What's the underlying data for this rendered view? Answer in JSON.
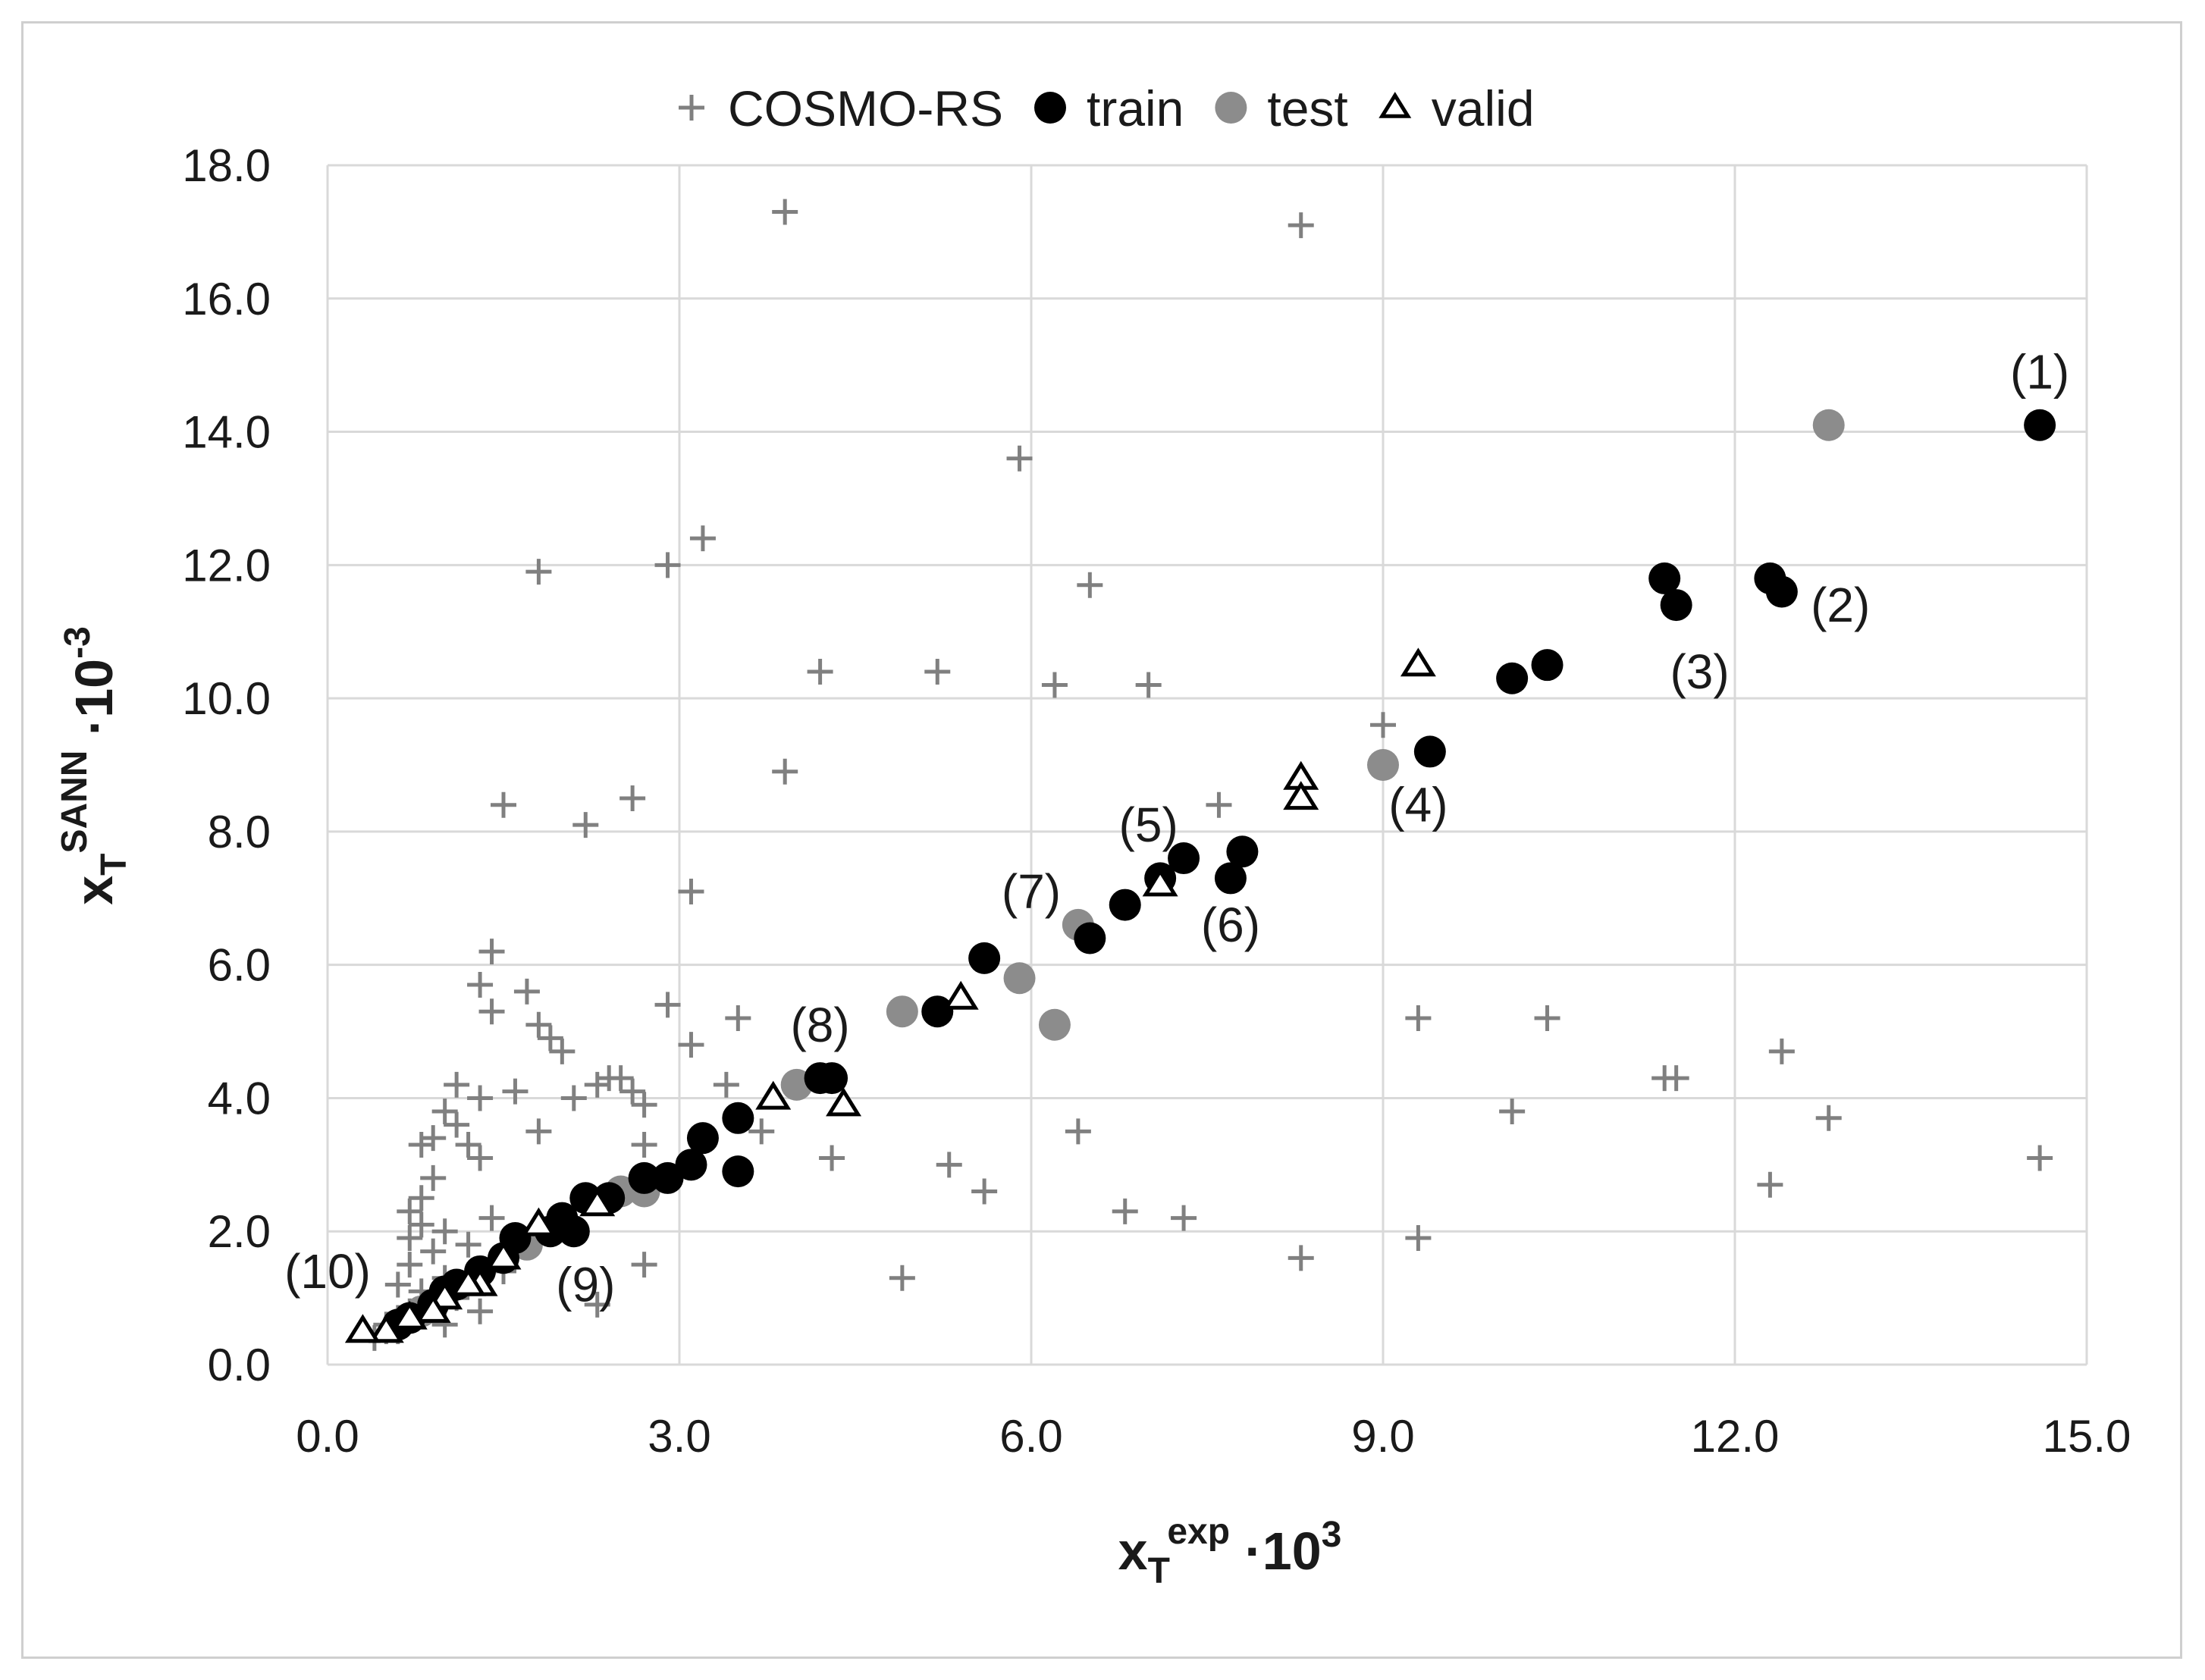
{
  "chart_data": {
    "type": "scatter",
    "title": "",
    "xlabel": {
      "base": "x",
      "sub": "T",
      "sup": "exp",
      "suffix": " ·10",
      "suffix_sup": "3"
    },
    "ylabel": {
      "base": "x",
      "sub": "T",
      "sup": "SANN",
      "suffix": " ·10",
      "suffix_sup": "-3"
    },
    "xlim": [
      0,
      15
    ],
    "ylim": [
      0,
      18
    ],
    "xticks": [
      0,
      3,
      6,
      9,
      12,
      15
    ],
    "yticks": [
      0,
      2,
      4,
      6,
      8,
      10,
      12,
      14,
      16,
      18
    ],
    "xtick_labels": [
      "0.0",
      "3.0",
      "6.0",
      "9.0",
      "12.0",
      "15.0"
    ],
    "ytick_labels": [
      "0.0",
      "2.0",
      "4.0",
      "6.0",
      "8.0",
      "10.0",
      "12.0",
      "14.0",
      "16.0",
      "18.0"
    ],
    "grid": true,
    "legend_position": "top-center",
    "legend": [
      {
        "name": "COSMO-RS",
        "marker": "plus",
        "color": "#808080"
      },
      {
        "name": "train",
        "marker": "circle",
        "color": "#000000"
      },
      {
        "name": "test",
        "marker": "circle",
        "color": "#8c8c8c"
      },
      {
        "name": "valid",
        "marker": "triangle",
        "color": "#000000"
      }
    ],
    "series": [
      {
        "name": "COSMO-RS",
        "points": [
          [
            3.9,
            17.3
          ],
          [
            8.3,
            17.1
          ],
          [
            5.9,
            13.6
          ],
          [
            3.2,
            12.4
          ],
          [
            2.9,
            12.0
          ],
          [
            1.8,
            11.9
          ],
          [
            6.5,
            11.7
          ],
          [
            4.2,
            10.4
          ],
          [
            5.2,
            10.4
          ],
          [
            6.2,
            10.2
          ],
          [
            7.0,
            10.2
          ],
          [
            9.0,
            9.6
          ],
          [
            3.9,
            8.9
          ],
          [
            7.6,
            8.4
          ],
          [
            2.6,
            8.5
          ],
          [
            1.5,
            8.4
          ],
          [
            2.2,
            8.1
          ],
          [
            3.1,
            7.1
          ],
          [
            1.4,
            6.2
          ],
          [
            1.3,
            5.7
          ],
          [
            1.7,
            5.6
          ],
          [
            1.4,
            5.3
          ],
          [
            2.9,
            5.4
          ],
          [
            3.5,
            5.2
          ],
          [
            1.8,
            5.1
          ],
          [
            1.9,
            4.9
          ],
          [
            2.0,
            4.7
          ],
          [
            3.1,
            4.8
          ],
          [
            9.3,
            5.2
          ],
          [
            10.4,
            5.2
          ],
          [
            12.4,
            4.7
          ],
          [
            11.4,
            4.3
          ],
          [
            11.5,
            4.3
          ],
          [
            2.4,
            4.3
          ],
          [
            2.5,
            4.3
          ],
          [
            2.3,
            4.2
          ],
          [
            2.6,
            4.1
          ],
          [
            2.7,
            3.9
          ],
          [
            1.1,
            4.2
          ],
          [
            1.6,
            4.1
          ],
          [
            2.1,
            4.0
          ],
          [
            1.0,
            3.8
          ],
          [
            1.1,
            3.6
          ],
          [
            1.3,
            4.0
          ],
          [
            3.4,
            4.2
          ],
          [
            0.9,
            3.4
          ],
          [
            0.8,
            3.3
          ],
          [
            1.2,
            3.3
          ],
          [
            1.8,
            3.5
          ],
          [
            3.7,
            3.5
          ],
          [
            6.4,
            3.5
          ],
          [
            10.1,
            3.8
          ],
          [
            12.8,
            3.7
          ],
          [
            1.3,
            3.1
          ],
          [
            0.9,
            2.8
          ],
          [
            0.8,
            2.5
          ],
          [
            0.7,
            2.3
          ],
          [
            0.8,
            2.1
          ],
          [
            1.0,
            2.0
          ],
          [
            1.4,
            2.2
          ],
          [
            0.7,
            1.9
          ],
          [
            0.9,
            1.7
          ],
          [
            1.2,
            1.8
          ],
          [
            2.7,
            3.3
          ],
          [
            4.3,
            3.1
          ],
          [
            5.3,
            3.0
          ],
          [
            5.6,
            2.6
          ],
          [
            6.8,
            2.3
          ],
          [
            7.3,
            2.2
          ],
          [
            12.3,
            2.7
          ],
          [
            14.6,
            3.1
          ],
          [
            9.3,
            1.9
          ],
          [
            8.3,
            1.6
          ],
          [
            4.9,
            1.3
          ],
          [
            2.7,
            1.5
          ],
          [
            2.3,
            0.9
          ],
          [
            1.3,
            0.8
          ],
          [
            1.0,
            0.6
          ],
          [
            0.7,
            0.8
          ],
          [
            0.6,
            0.5
          ],
          [
            0.5,
            0.6
          ],
          [
            0.9,
            0.9
          ],
          [
            1.1,
            1.0
          ],
          [
            0.6,
            1.2
          ],
          [
            0.7,
            1.5
          ],
          [
            0.8,
            1.1
          ],
          [
            1.5,
            1.4
          ],
          [
            0.4,
            0.4
          ],
          [
            0.5,
            0.5
          ],
          [
            0.6,
            0.7
          ],
          [
            1.0,
            1.3
          ]
        ]
      },
      {
        "name": "train",
        "points": [
          [
            14.6,
            14.1
          ],
          [
            11.4,
            11.8
          ],
          [
            11.5,
            11.4
          ],
          [
            12.3,
            11.8
          ],
          [
            12.4,
            11.6
          ],
          [
            10.1,
            10.3
          ],
          [
            10.4,
            10.5
          ],
          [
            9.4,
            9.2
          ],
          [
            7.3,
            7.6
          ],
          [
            7.8,
            7.7
          ],
          [
            7.7,
            7.3
          ],
          [
            7.1,
            7.3
          ],
          [
            6.8,
            6.9
          ],
          [
            6.5,
            6.4
          ],
          [
            5.6,
            6.1
          ],
          [
            5.2,
            5.3
          ],
          [
            4.2,
            4.3
          ],
          [
            4.3,
            4.3
          ],
          [
            3.5,
            3.7
          ],
          [
            3.5,
            2.9
          ],
          [
            3.2,
            3.4
          ],
          [
            3.1,
            3.0
          ],
          [
            2.9,
            2.8
          ],
          [
            2.7,
            2.8
          ],
          [
            2.2,
            2.5
          ],
          [
            2.1,
            2.0
          ],
          [
            1.9,
            2.0
          ],
          [
            1.6,
            1.9
          ],
          [
            1.5,
            1.6
          ],
          [
            1.3,
            1.4
          ],
          [
            1.1,
            1.2
          ],
          [
            1.0,
            1.1
          ],
          [
            0.9,
            0.9
          ],
          [
            0.7,
            0.7
          ],
          [
            0.6,
            0.6
          ],
          [
            2.0,
            2.2
          ],
          [
            2.4,
            2.5
          ]
        ]
      },
      {
        "name": "test",
        "points": [
          [
            12.8,
            14.1
          ],
          [
            9.0,
            9.0
          ],
          [
            6.4,
            6.6
          ],
          [
            5.9,
            5.8
          ],
          [
            6.2,
            5.1
          ],
          [
            4.9,
            5.3
          ],
          [
            4.0,
            4.2
          ],
          [
            2.7,
            2.6
          ],
          [
            2.5,
            2.6
          ],
          [
            1.7,
            1.8
          ],
          [
            1.1,
            1.2
          ],
          [
            0.8,
            0.8
          ]
        ]
      },
      {
        "name": "valid",
        "points": [
          [
            9.3,
            10.5
          ],
          [
            8.3,
            8.8
          ],
          [
            8.3,
            8.5
          ],
          [
            7.1,
            7.2
          ],
          [
            5.4,
            5.5
          ],
          [
            4.4,
            3.9
          ],
          [
            3.8,
            4.0
          ],
          [
            2.3,
            2.4
          ],
          [
            1.8,
            2.1
          ],
          [
            1.5,
            1.6
          ],
          [
            1.3,
            1.2
          ],
          [
            1.2,
            1.2
          ],
          [
            1.0,
            1.0
          ],
          [
            0.9,
            0.8
          ],
          [
            0.7,
            0.7
          ],
          [
            0.5,
            0.5
          ],
          [
            0.3,
            0.5
          ]
        ]
      }
    ],
    "annotations": [
      {
        "text": "(1)",
        "x": 14.6,
        "y": 14.9
      },
      {
        "text": "(2)",
        "x": 12.9,
        "y": 11.4
      },
      {
        "text": "(3)",
        "x": 11.7,
        "y": 10.4
      },
      {
        "text": "(4)",
        "x": 9.3,
        "y": 8.4
      },
      {
        "text": "(5)",
        "x": 7.0,
        "y": 8.1
      },
      {
        "text": "(6)",
        "x": 7.7,
        "y": 6.6
      },
      {
        "text": "(7)",
        "x": 6.0,
        "y": 7.1
      },
      {
        "text": "(8)",
        "x": 4.2,
        "y": 5.1
      },
      {
        "text": "(9)",
        "x": 2.2,
        "y": 1.2
      },
      {
        "text": "(10)",
        "x": 0.0,
        "y": 1.4
      }
    ]
  }
}
